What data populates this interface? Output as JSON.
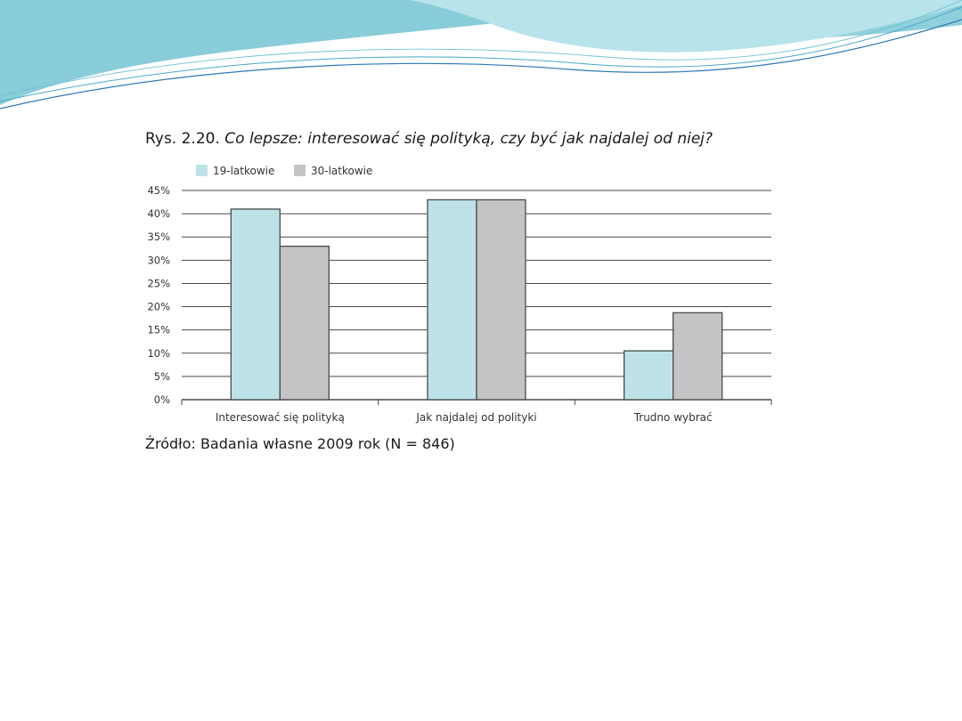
{
  "slide": {
    "title_prefix": "Rys. 2.20.",
    "title_question": "Co lepsze: interesować się polityką, czy być jak najdalej od niej?",
    "source": "Źródło: Badania własne 2009 rok (N = 846)"
  },
  "colors": {
    "series_19": "#bde3e8",
    "series_30": "#c4c4c6",
    "bar_stroke": "#4a4a4a",
    "grid": "#4a4a4a",
    "wave_light": "#a8dce6",
    "wave_mid": "#6cc4d4",
    "wave_dark": "#2f78b8"
  },
  "chart_data": {
    "type": "bar",
    "title": "Co lepsze: interesować się polityką, czy być jak najdalej od niej?",
    "categories": [
      "Interesować się polityką",
      "Jak najdalej od polityki",
      "Trudno wybrać"
    ],
    "series": [
      {
        "name": "19-latkowie",
        "values": [
          41,
          43,
          10.5
        ]
      },
      {
        "name": "30-latkowie",
        "values": [
          33,
          43,
          18.7
        ]
      }
    ],
    "ylim": [
      0,
      45
    ],
    "yticks": [
      "0%",
      "5%",
      "10%",
      "15%",
      "20%",
      "25%",
      "30%",
      "35%",
      "40%",
      "45%"
    ],
    "ytick_values": [
      0,
      5,
      10,
      15,
      20,
      25,
      30,
      35,
      40,
      45
    ],
    "grid": true,
    "legend": "top-left"
  }
}
